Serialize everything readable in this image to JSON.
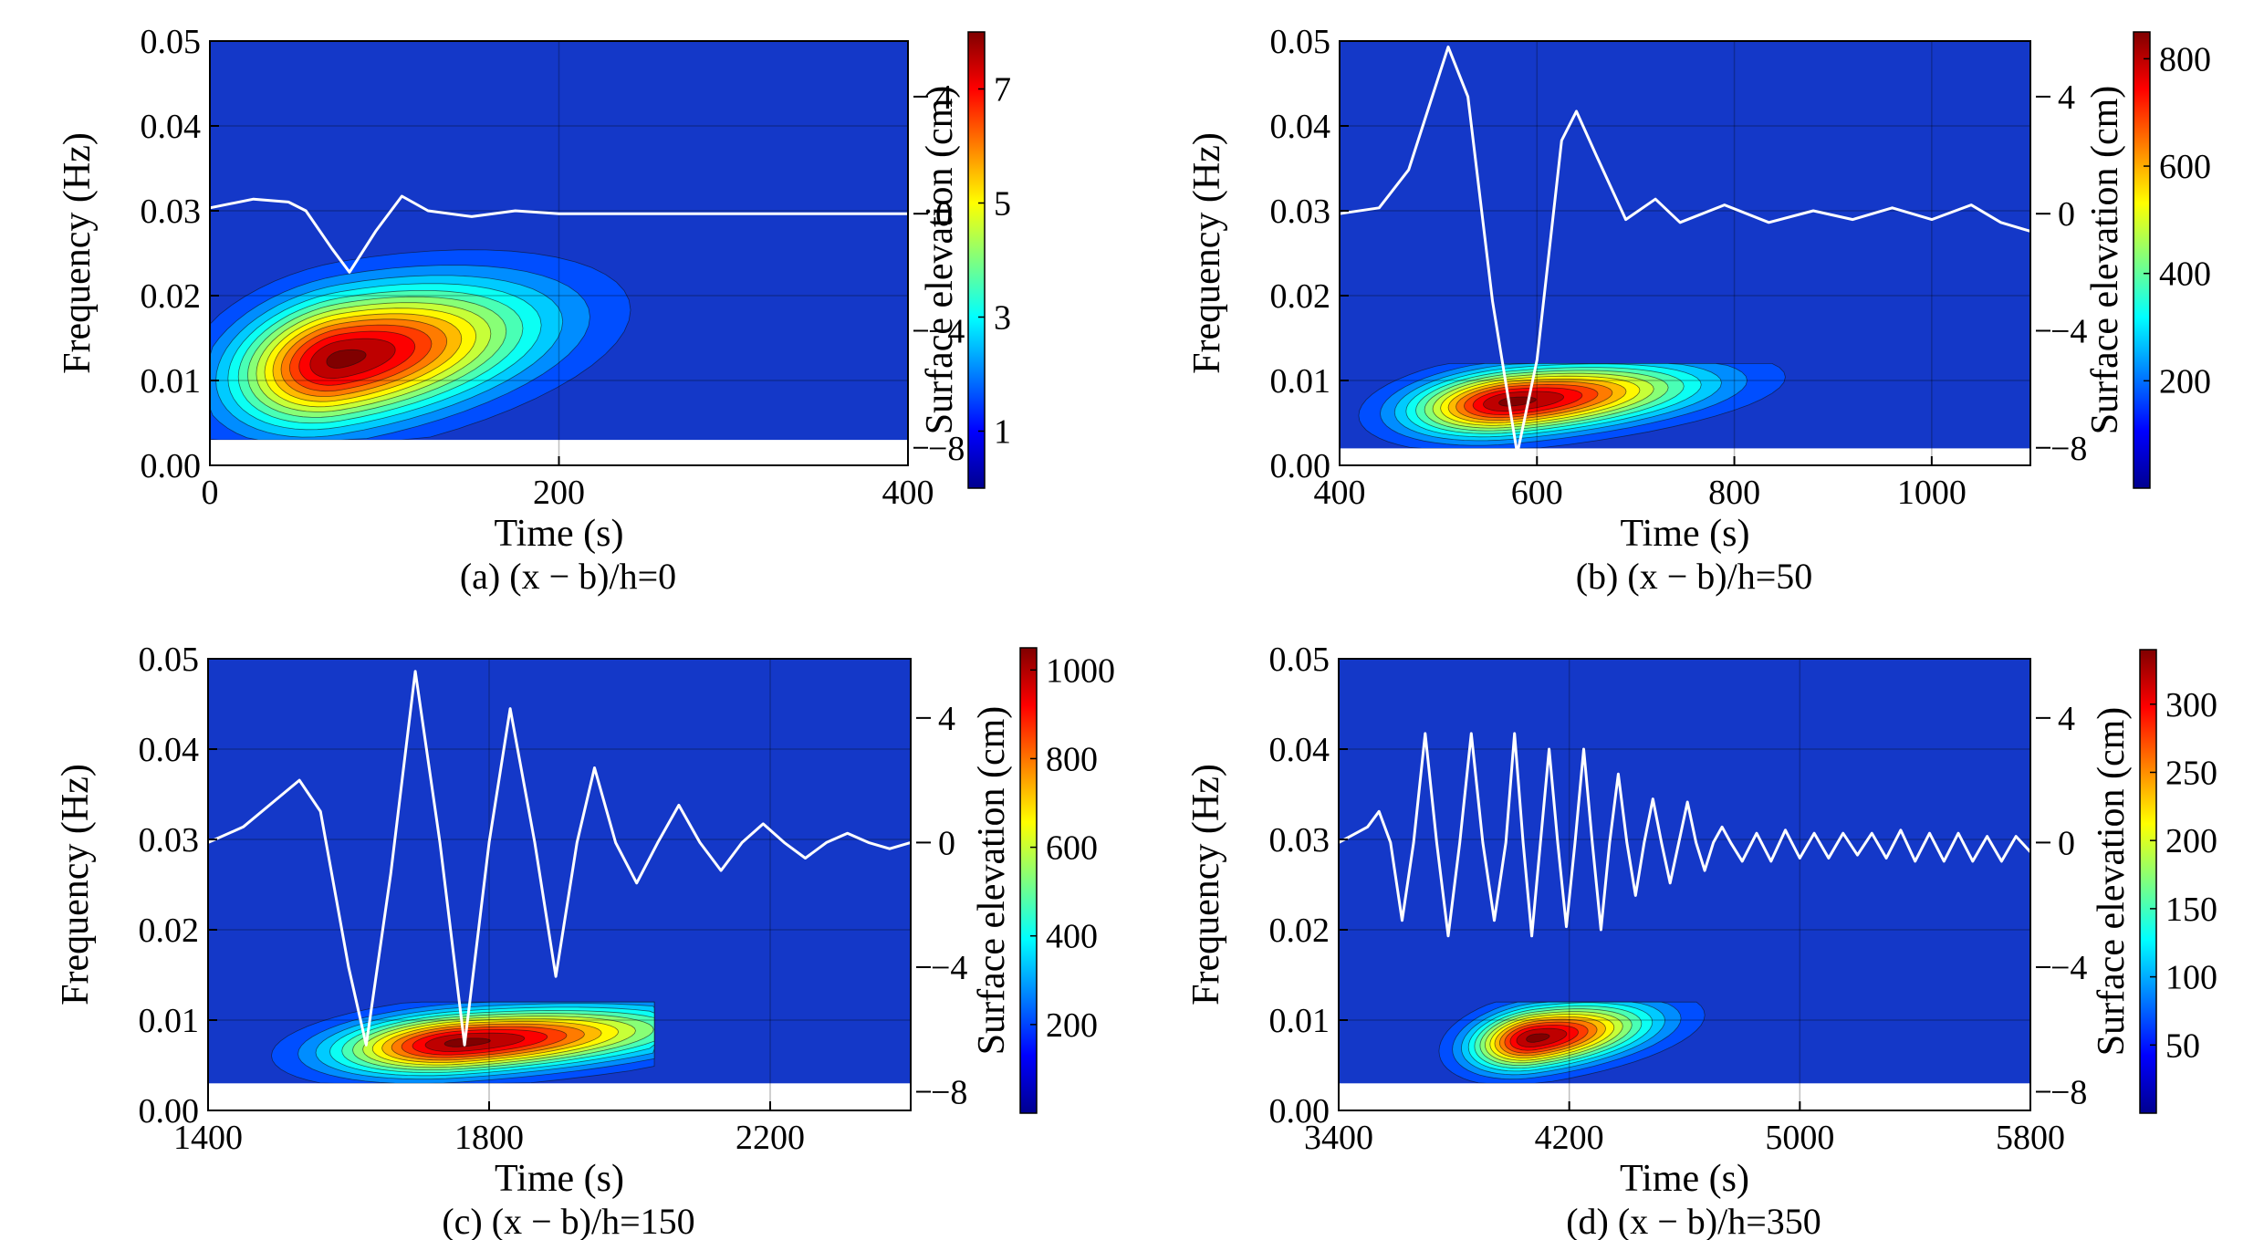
{
  "chart_data": [
    {
      "type": "heatmap",
      "panel_label": "(a) (x − b)/h=0",
      "xlabel": "Time (s)",
      "ylabel": "Frequency (Hz)",
      "right_axis_label": "Surface elevation (cm)",
      "xlim": [
        0,
        400
      ],
      "xticks": [
        0,
        200,
        400
      ],
      "ylim": [
        0,
        0.05
      ],
      "yticks": [
        "0.00",
        "0.01",
        "0.02",
        "0.03",
        "0.04",
        "0.05"
      ],
      "elevation_ticks": [
        "4",
        "0",
        "−4",
        "−8"
      ],
      "elevation_tick_values": [
        4,
        0,
        -4,
        -8
      ],
      "colorbar_ticks": [
        1,
        3,
        5,
        7
      ],
      "colorbar_max": 8,
      "energy_peak": {
        "time": 75,
        "frequency": 0.0125,
        "sigma_time": 45,
        "sigma_frequency": 0.005
      },
      "energy_support": {
        "time": [
          0,
          290
        ],
        "frequency": [
          0.003,
          0.028
        ]
      },
      "surface_elevation": [
        [
          0,
          0.2
        ],
        [
          25,
          0.5
        ],
        [
          45,
          0.4
        ],
        [
          55,
          0.1
        ],
        [
          70,
          -1.2
        ],
        [
          80,
          -2
        ],
        [
          95,
          -0.6
        ],
        [
          110,
          0.6
        ],
        [
          125,
          0.1
        ],
        [
          150,
          -0.1
        ],
        [
          175,
          0.1
        ],
        [
          200,
          0
        ],
        [
          400,
          0
        ]
      ]
    },
    {
      "type": "heatmap",
      "panel_label": "(b) (x − b)/h=50",
      "xlabel": "Time (s)",
      "ylabel": "Frequency (Hz)",
      "right_axis_label": "Surface elevation (cm)",
      "xlim": [
        400,
        1100
      ],
      "xticks": [
        400,
        600,
        800,
        1000
      ],
      "ylim": [
        0,
        0.05
      ],
      "yticks": [
        "0.00",
        "0.01",
        "0.02",
        "0.03",
        "0.04",
        "0.05"
      ],
      "elevation_ticks": [
        "4",
        "0",
        "−4",
        "−8"
      ],
      "elevation_tick_values": [
        4,
        0,
        -4,
        -8
      ],
      "colorbar_ticks": [
        200,
        400,
        600,
        800
      ],
      "colorbar_max": 850,
      "energy_peak": {
        "time": 575,
        "frequency": 0.0075,
        "sigma_time": 75,
        "sigma_frequency": 0.0025
      },
      "energy_support": {
        "time": [
          400,
          895
        ],
        "frequency": [
          0.002,
          0.012
        ]
      },
      "surface_elevation": [
        [
          400,
          0
        ],
        [
          440,
          0.2
        ],
        [
          470,
          1.5
        ],
        [
          510,
          5.7
        ],
        [
          530,
          4
        ],
        [
          555,
          -3
        ],
        [
          580,
          -8.2
        ],
        [
          600,
          -5
        ],
        [
          625,
          2.5
        ],
        [
          640,
          3.5
        ],
        [
          660,
          2
        ],
        [
          690,
          -0.2
        ],
        [
          720,
          0.5
        ],
        [
          745,
          -0.3
        ],
        [
          790,
          0.3
        ],
        [
          835,
          -0.3
        ],
        [
          880,
          0.1
        ],
        [
          920,
          -0.2
        ],
        [
          960,
          0.2
        ],
        [
          1000,
          -0.2
        ],
        [
          1040,
          0.3
        ],
        [
          1070,
          -0.3
        ],
        [
          1100,
          -0.6
        ]
      ]
    },
    {
      "type": "heatmap",
      "panel_label": "(c) (x − b)/h=150",
      "xlabel": "Time (s)",
      "ylabel": "Frequency (Hz)",
      "right_axis_label": "Surface elevation (cm)",
      "xlim": [
        1400,
        2400
      ],
      "xticks": [
        1400,
        1800,
        2200
      ],
      "ylim": [
        0,
        0.05
      ],
      "yticks": [
        "0.00",
        "0.01",
        "0.02",
        "0.03",
        "0.04",
        "0.05"
      ],
      "elevation_ticks": [
        "4",
        "0",
        "−4",
        "−8"
      ],
      "elevation_tick_values": [
        4,
        0,
        -4,
        -8
      ],
      "colorbar_ticks": [
        200,
        400,
        600,
        800,
        1000
      ],
      "colorbar_max": 1050,
      "energy_peak": {
        "time": 1760,
        "frequency": 0.0075,
        "sigma_time": 130,
        "sigma_frequency": 0.0022
      },
      "energy_support": {
        "time": [
          1400,
          2035
        ],
        "frequency": [
          0.003,
          0.012
        ]
      },
      "surface_elevation": [
        [
          1400,
          0
        ],
        [
          1450,
          0.5
        ],
        [
          1530,
          2
        ],
        [
          1560,
          1
        ],
        [
          1600,
          -4
        ],
        [
          1625,
          -6.5
        ],
        [
          1660,
          -1
        ],
        [
          1695,
          5.5
        ],
        [
          1730,
          0
        ],
        [
          1765,
          -6.5
        ],
        [
          1800,
          0
        ],
        [
          1830,
          4.3
        ],
        [
          1865,
          0
        ],
        [
          1895,
          -4.3
        ],
        [
          1925,
          0
        ],
        [
          1950,
          2.4
        ],
        [
          1980,
          0
        ],
        [
          2010,
          -1.3
        ],
        [
          2040,
          0
        ],
        [
          2070,
          1.2
        ],
        [
          2100,
          0
        ],
        [
          2130,
          -0.9
        ],
        [
          2160,
          0
        ],
        [
          2190,
          0.6
        ],
        [
          2220,
          0
        ],
        [
          2250,
          -0.5
        ],
        [
          2280,
          0
        ],
        [
          2310,
          0.3
        ],
        [
          2340,
          0
        ],
        [
          2370,
          -0.2
        ],
        [
          2400,
          0
        ]
      ]
    },
    {
      "type": "heatmap",
      "panel_label": "(d) (x − b)/h=350",
      "xlabel": "Time (s)",
      "ylabel": "Frequency (Hz)",
      "right_axis_label": "Surface elevation (cm)",
      "xlim": [
        3400,
        5800
      ],
      "xticks": [
        3400,
        4200,
        5000,
        5800
      ],
      "ylim": [
        0,
        0.05
      ],
      "yticks": [
        "0.00",
        "0.01",
        "0.02",
        "0.03",
        "0.04",
        "0.05"
      ],
      "elevation_ticks": [
        "4",
        "0",
        "−4",
        "−8"
      ],
      "elevation_tick_values": [
        4,
        0,
        -4,
        -8
      ],
      "colorbar_ticks": [
        50,
        100,
        150,
        200,
        250,
        300
      ],
      "colorbar_max": 340,
      "energy_peak": {
        "time": 4080,
        "frequency": 0.008,
        "sigma_time": 160,
        "sigma_frequency": 0.0022
      },
      "energy_support": {
        "time": [
          3400,
          4900
        ],
        "frequency": [
          0.003,
          0.012
        ]
      },
      "surface_elevation": [
        [
          3400,
          0
        ],
        [
          3500,
          0.5
        ],
        [
          3540,
          1
        ],
        [
          3580,
          0
        ],
        [
          3620,
          -2.5
        ],
        [
          3660,
          0
        ],
        [
          3700,
          3.5
        ],
        [
          3740,
          0
        ],
        [
          3780,
          -3
        ],
        [
          3820,
          0
        ],
        [
          3860,
          3.5
        ],
        [
          3900,
          0
        ],
        [
          3940,
          -2.5
        ],
        [
          3980,
          0
        ],
        [
          4010,
          3.5
        ],
        [
          4040,
          0
        ],
        [
          4070,
          -3
        ],
        [
          4100,
          0
        ],
        [
          4130,
          3
        ],
        [
          4160,
          0
        ],
        [
          4190,
          -2.7
        ],
        [
          4220,
          0
        ],
        [
          4250,
          3
        ],
        [
          4280,
          0
        ],
        [
          4310,
          -2.8
        ],
        [
          4340,
          0
        ],
        [
          4370,
          2.2
        ],
        [
          4400,
          0
        ],
        [
          4430,
          -1.7
        ],
        [
          4460,
          0
        ],
        [
          4490,
          1.4
        ],
        [
          4520,
          0
        ],
        [
          4550,
          -1.3
        ],
        [
          4580,
          0
        ],
        [
          4610,
          1.3
        ],
        [
          4640,
          0
        ],
        [
          4670,
          -0.9
        ],
        [
          4700,
          0
        ],
        [
          4730,
          0.5
        ],
        [
          4760,
          0
        ],
        [
          4800,
          -0.6
        ],
        [
          4850,
          0.3
        ],
        [
          4900,
          -0.6
        ],
        [
          4950,
          0.4
        ],
        [
          5000,
          -0.5
        ],
        [
          5050,
          0.3
        ],
        [
          5100,
          -0.5
        ],
        [
          5150,
          0.3
        ],
        [
          5200,
          -0.4
        ],
        [
          5250,
          0.3
        ],
        [
          5300,
          -0.5
        ],
        [
          5350,
          0.4
        ],
        [
          5400,
          -0.6
        ],
        [
          5450,
          0.3
        ],
        [
          5500,
          -0.6
        ],
        [
          5550,
          0.3
        ],
        [
          5600,
          -0.6
        ],
        [
          5650,
          0.2
        ],
        [
          5700,
          -0.6
        ],
        [
          5750,
          0.2
        ],
        [
          5800,
          -0.3
        ]
      ]
    }
  ]
}
